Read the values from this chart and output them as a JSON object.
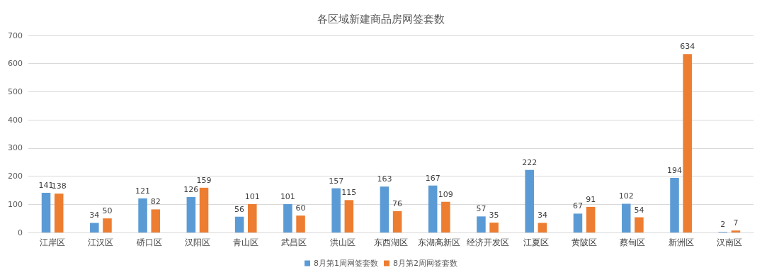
{
  "chart_data": {
    "type": "bar",
    "title": "各区域新建商品房网签套数",
    "categories": [
      "江岸区",
      "江汉区",
      "硚口区",
      "汉阳区",
      "青山区",
      "武昌区",
      "洪山区",
      "东西湖区",
      "东湖高新区",
      "经济开发区",
      "江夏区",
      "黄陂区",
      "蔡甸区",
      "新洲区",
      "汉南区"
    ],
    "series": [
      {
        "name": "8月第1周网签套数",
        "color": "#5b9bd5",
        "values": [
          141,
          34,
          121,
          126,
          56,
          101,
          157,
          163,
          167,
          57,
          222,
          67,
          102,
          194,
          2
        ]
      },
      {
        "name": "8月第2周网签套数",
        "color": "#ed7d31",
        "values": [
          138,
          50,
          82,
          159,
          101,
          60,
          115,
          76,
          109,
          35,
          34,
          91,
          54,
          634,
          7
        ]
      }
    ],
    "ylim": [
      0,
      700
    ],
    "yticks": [
      0,
      100,
      200,
      300,
      400,
      500,
      600,
      700
    ],
    "grid": "y",
    "legend": "bottom",
    "data_labels": true
  }
}
